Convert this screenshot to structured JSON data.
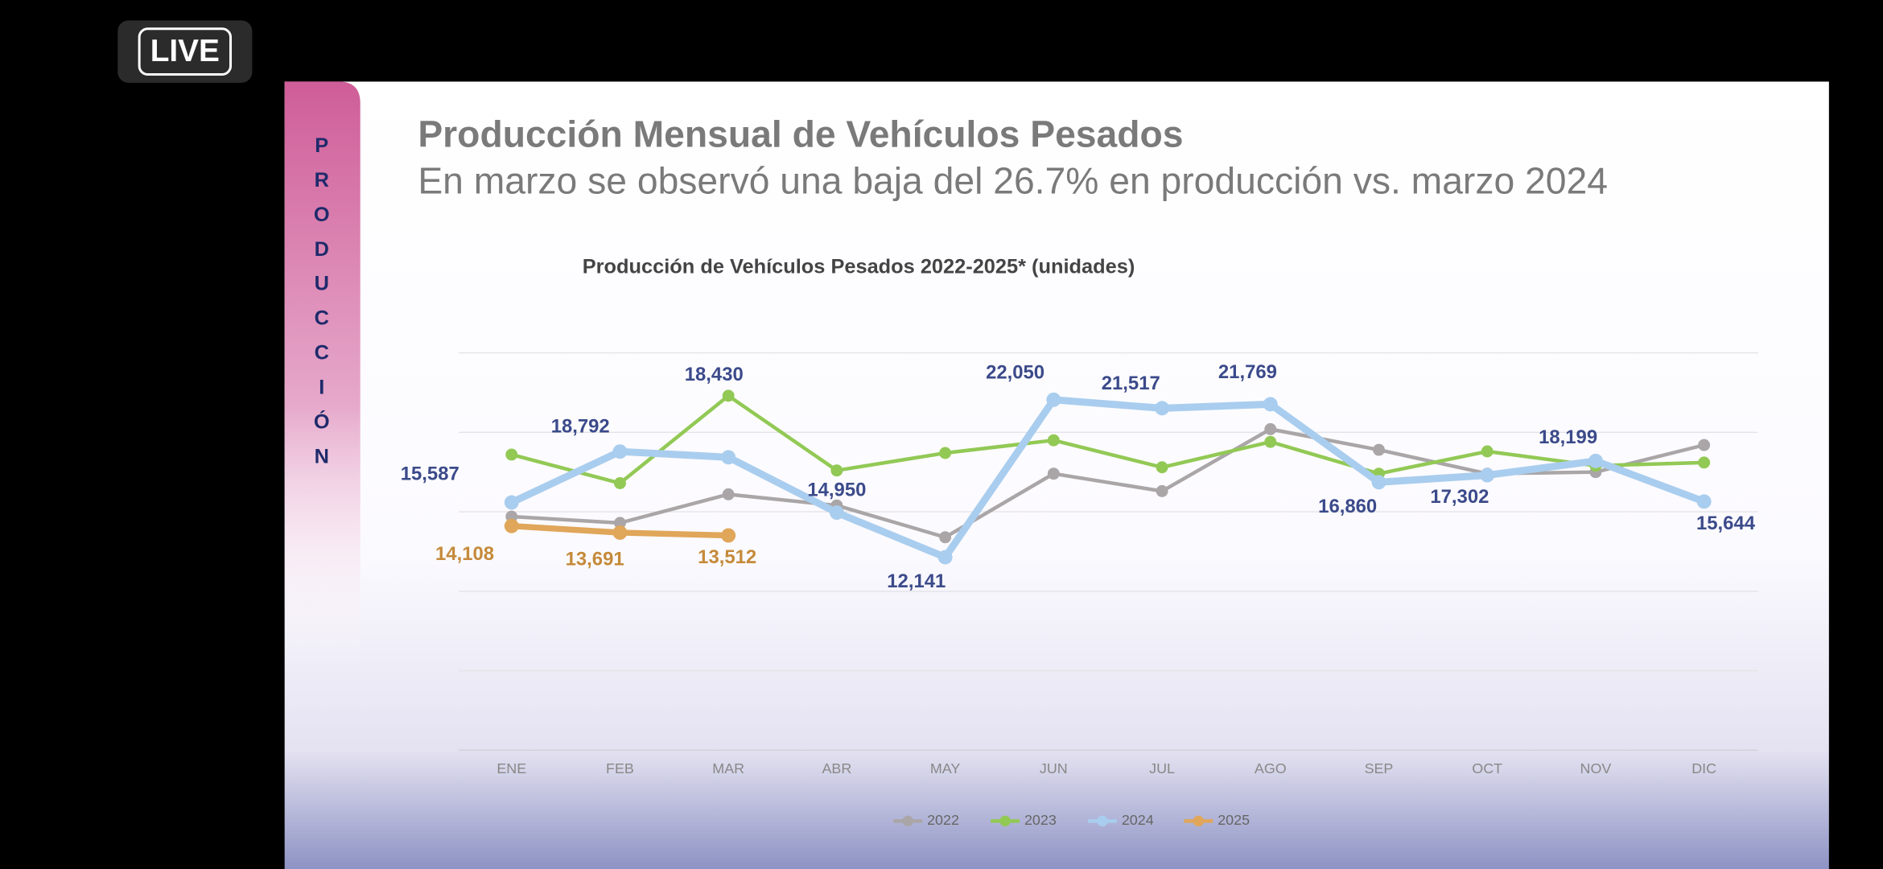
{
  "live_badge": "LIVE",
  "side_label": "PRODUCCIÓN",
  "slide_title": "Producción Mensual de Vehículos Pesados",
  "slide_subtitle": "En marzo se observó una baja del 26.7% en producción vs. marzo 2024",
  "chart_data": {
    "type": "line",
    "title": "Producción de Vehículos Pesados 2022-2025* (unidades)",
    "categories": [
      "ENE",
      "FEB",
      "MAR",
      "ABR",
      "MAY",
      "JUN",
      "JUL",
      "AGO",
      "SEP",
      "OCT",
      "NOV",
      "DIC"
    ],
    "series": [
      {
        "name": "2022",
        "color": "#aaa6a8",
        "values": [
          14700,
          14300,
          16100,
          15400,
          13400,
          17400,
          16300,
          20200,
          18900,
          17400,
          17500,
          19200
        ]
      },
      {
        "name": "2023",
        "color": "#92c955",
        "values": [
          18600,
          16800,
          22300,
          17600,
          18700,
          19500,
          17800,
          19400,
          17400,
          18800,
          17900,
          18100
        ]
      },
      {
        "name": "2024",
        "color": "#a9cdee",
        "label_color": "#3b4a8a",
        "values": [
          15587,
          18792,
          18430,
          14950,
          12141,
          22050,
          21517,
          21769,
          16860,
          17302,
          18199,
          15644
        ],
        "value_labels": [
          "15,587",
          "18,792",
          "18,430",
          "14,950",
          "12,141",
          "22,050",
          "21,517",
          "21,769",
          "16,860",
          "17,302",
          "18,199",
          "15,644"
        ]
      },
      {
        "name": "2025",
        "color": "#e0a65a",
        "label_color": "#c58a3a",
        "values": [
          14108,
          13691,
          13512,
          null,
          null,
          null,
          null,
          null,
          null,
          null,
          null,
          null
        ],
        "value_labels": [
          "14,108",
          "13,691",
          "13,512",
          null,
          null,
          null,
          null,
          null,
          null,
          null,
          null,
          null
        ]
      }
    ],
    "ylim": [
      0,
      25000
    ],
    "yticks": [
      0,
      5000,
      10000,
      15000,
      20000,
      25000
    ],
    "grid": true,
    "legend": "bottom"
  }
}
